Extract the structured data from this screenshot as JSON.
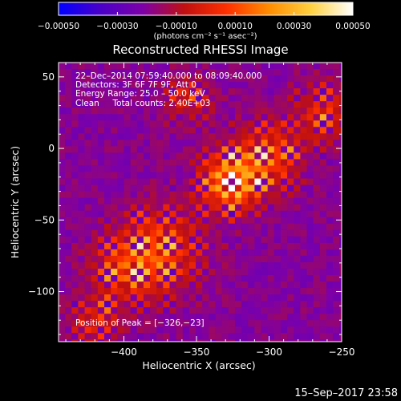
{
  "chart_data": {
    "type": "heatmap",
    "title": "Reconstructed RHESSI Image",
    "xlabel": "Heliocentric X (arcsec)",
    "ylabel": "Heliocentric Y (arcsec)",
    "xlim": [
      -445,
      -250
    ],
    "ylim": [
      -135,
      60
    ],
    "x_ticks": [
      -400,
      -350,
      -300,
      -250
    ],
    "x_tick_labels": [
      "−400",
      "−350",
      "−300",
      "−250"
    ],
    "y_ticks": [
      50,
      0,
      -50,
      -100
    ],
    "y_tick_labels": [
      "50",
      "0",
      "−50",
      "−100"
    ],
    "colorbar": {
      "min": -0.0005,
      "max": 0.0005,
      "ticks": [
        -0.0005,
        -0.0003,
        -0.0001,
        0.0001,
        0.0003,
        0.0005
      ],
      "tick_labels": [
        "−0.00050",
        "−0.00030",
        "−0.00010",
        "0.00010",
        "0.00030",
        "0.00050"
      ],
      "unit": "(photons cm⁻² s⁻¹ asec⁻²)",
      "colors": [
        "#0000ff",
        "#4a00c8",
        "#7d00a8",
        "#c01010",
        "#ff3000",
        "#ff8c00",
        "#ffd040",
        "#ffffff"
      ]
    },
    "annotations": [
      "22–Dec–2014 07:59:40.000 to 08:09:40.000",
      "Detectors: 3F 6F 7F 9F, Att 0",
      "Energy Range: 25.0 – 50.0 keV",
      "Clean     Total counts: 2.40E+03"
    ],
    "peak_label": "Position of Peak = [−326,−23]",
    "peak": [
      -326,
      -23
    ],
    "sources": [
      {
        "x": -326,
        "y": -23,
        "sigma": 14,
        "amp": 1.0
      },
      {
        "x": -300,
        "y": -5,
        "sigma": 16,
        "amp": 0.55
      },
      {
        "x": -375,
        "y": -70,
        "sigma": 20,
        "amp": 0.55
      },
      {
        "x": -398,
        "y": -85,
        "sigma": 16,
        "amp": 0.45
      },
      {
        "x": -262,
        "y": 25,
        "sigma": 14,
        "amp": 0.45
      },
      {
        "x": -355,
        "y": 35,
        "sigma": 12,
        "amp": 0.35
      },
      {
        "x": -420,
        "y": -120,
        "sigma": 12,
        "amp": 0.4
      }
    ]
  },
  "footer": {
    "timestamp": "15–Sep–2017 23:58"
  }
}
